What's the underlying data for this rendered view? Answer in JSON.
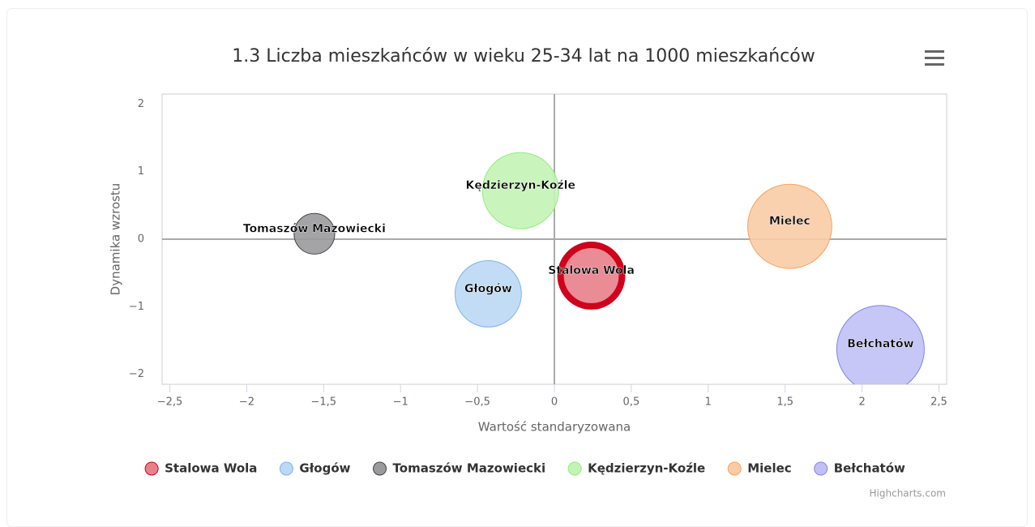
{
  "chart_data": {
    "type": "bubble",
    "title": "1.3 Liczba mieszkańców w wieku 25-34 lat na 1000 mieszkańców",
    "x_label": "Wartość standaryzowana",
    "y_label": "Dynamika wzrostu",
    "credits": "Highcharts.com",
    "xlim": [
      -2.55,
      2.55
    ],
    "ylim": [
      -2.15,
      2.15
    ],
    "xticks": [
      {
        "value": -2.5,
        "label": "−2,5"
      },
      {
        "value": -2,
        "label": "−2"
      },
      {
        "value": -1.5,
        "label": "−1,5"
      },
      {
        "value": -1,
        "label": "−1"
      },
      {
        "value": -0.5,
        "label": "−0,5"
      },
      0,
      {
        "value": 0.5,
        "label": "0,5"
      },
      1,
      {
        "value": 1.5,
        "label": "1,5"
      },
      2,
      {
        "value": 2.5,
        "label": "2,5"
      }
    ],
    "yticks": [
      {
        "value": -2,
        "label": "−2"
      },
      {
        "value": -1,
        "label": "−1"
      },
      0,
      1,
      2
    ],
    "series": [
      {
        "name": "Stalowa Wola",
        "color": "#e8808a",
        "stroke": "#d0021b",
        "x": [
          0.24
        ],
        "values": [
          -0.54
        ],
        "sizes": [
          17.6
        ]
      },
      {
        "name": "Głogów",
        "color": "#bcd8f4",
        "stroke": "#7cb5ec",
        "x": [
          -0.43
        ],
        "values": [
          -0.81
        ],
        "sizes": [
          16.8
        ]
      },
      {
        "name": "Tomaszów Mazowiecki",
        "color": "#9a9a9c",
        "stroke": "#434348",
        "x": [
          -1.56
        ],
        "values": [
          0.08
        ],
        "sizes": [
          6.3
        ]
      },
      {
        "name": "Kędzierzyn-Koźle",
        "color": "#c3f4b5",
        "stroke": "#90ed7d",
        "x": [
          -0.22
        ],
        "values": [
          0.72
        ],
        "sizes": [
          22.1
        ]
      },
      {
        "name": "Mielec",
        "color": "#f9cca6",
        "stroke": "#f7a35c",
        "x": [
          1.53
        ],
        "values": [
          0.19
        ],
        "sizes": [
          27.0
        ]
      },
      {
        "name": "Bełchatów",
        "color": "#c0c0f6",
        "stroke": "#8085e9",
        "x": [
          2.12
        ],
        "values": [
          -1.63
        ],
        "sizes": [
          29.2
        ]
      }
    ]
  }
}
